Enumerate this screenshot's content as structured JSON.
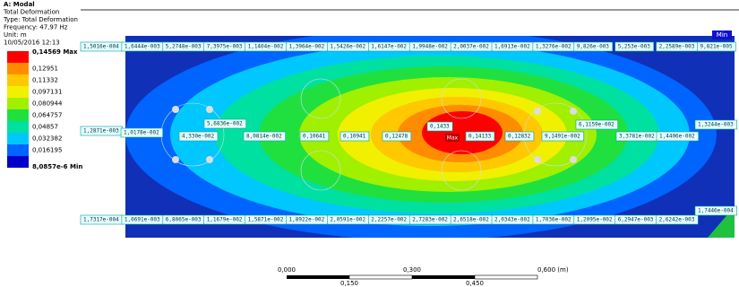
{
  "header": {
    "lines": [
      "A: Modal",
      "Total Deformation",
      "Type: Total Deformation",
      "Frequency: 47,97 Hz",
      "Unit: m",
      "10/05/2016 12:13"
    ]
  },
  "legend": {
    "labels": [
      "0,14569 Max",
      "0,12951",
      "0,11332",
      "0,097131",
      "0,080944",
      "0,064757",
      "0,04857",
      "0,032382",
      "0,016195",
      "8,0857e-6 Min"
    ],
    "colors": [
      "#ff0000",
      "#ff8c00",
      "#ffc800",
      "#f0f000",
      "#a0f000",
      "#20e040",
      "#00e0a0",
      "#00c8ff",
      "#0064ff",
      "#0000c8"
    ]
  },
  "probes": {
    "top": [
      "1,5016e-004",
      "1,6444e-003",
      "5,2748e-003",
      "7,3975e-003",
      "1,1404e-002",
      "1,3964e-002",
      "1,5426e-002",
      "1,6147e-002",
      "1,9948e-002",
      "2,0037e-002",
      "1,6913e-002",
      "1,3276e-002",
      "9,826e-003",
      "5,253e-003",
      "2,2589e-003",
      "9,821e-005"
    ],
    "middle": [
      "1,2871e-003",
      "1,0178e-002",
      "4,330e-002",
      "5,6836e-002",
      "8,0814e-002",
      "0,10641",
      "0,10941",
      "0,12478",
      "0,1433",
      "0,14133",
      "0,12832",
      "9,1491e-002",
      "6,1159e-002",
      "3,3781e-002",
      "1,4406e-002",
      "1,3244e-003"
    ],
    "bottom": [
      "1,7317e-004",
      "1,0691e-003",
      "6,8065e-003",
      "1,1679e-002",
      "1,5871e-002",
      "1,8922e-002",
      "2,0591e-002",
      "2,2257e-002",
      "2,7283e-002",
      "2,6518e-002",
      "2,0343e-002",
      "1,7036e-002",
      "1,2095e-002",
      "6,2947e-003",
      "2,6242e-003",
      "1,7446e-004"
    ]
  },
  "markers": {
    "max": "Max",
    "min": "Min"
  },
  "scale": {
    "major": [
      "0,000",
      "0,300",
      "0,600 (m)"
    ],
    "minor": [
      "0,150",
      "0,450"
    ]
  }
}
